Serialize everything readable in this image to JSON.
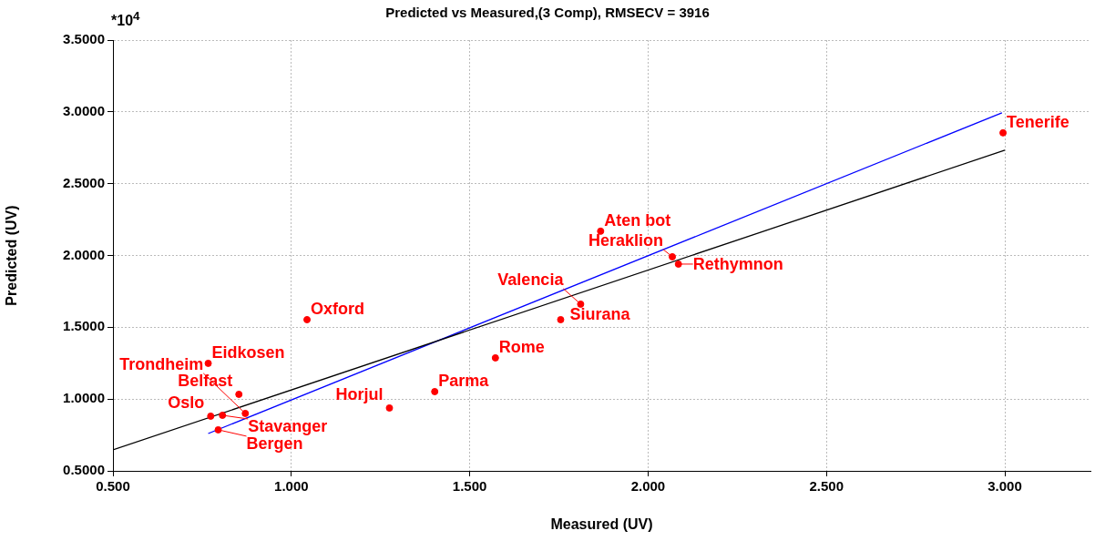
{
  "chart_data": {
    "type": "scatter",
    "title": "Predicted vs Measured,(3 Comp), RMSECV = 3916",
    "xlabel": "Measured (UV)",
    "ylabel": "Predicted (UV)",
    "xlim": [
      0.5,
      3.24
    ],
    "ylim": [
      0.5,
      3.5
    ],
    "xticks": [
      {
        "value": 0.5,
        "label": "0.500"
      },
      {
        "value": 1,
        "label": "1.000"
      },
      {
        "value": 1.5,
        "label": "1.500"
      },
      {
        "value": 2,
        "label": "2.000"
      },
      {
        "value": 2.5,
        "label": "2.500"
      },
      {
        "value": 3,
        "label": "3.000"
      }
    ],
    "yticks": [
      {
        "value": 0.5,
        "label": "0.5000"
      },
      {
        "value": 1,
        "label": "1.0000"
      },
      {
        "value": 1.5,
        "label": "1.5000"
      },
      {
        "value": 2,
        "label": "2.0000"
      },
      {
        "value": 2.5,
        "label": "2.5000"
      },
      {
        "value": 3,
        "label": "3.0000"
      },
      {
        "value": 3.5,
        "label": "3.5000"
      }
    ],
    "grid": true,
    "legend": false,
    "series": [
      {
        "type": "scatter",
        "marker": "circle",
        "color": "#ff0000",
        "x": [
          0.767,
          0.853,
          0.774,
          0.807,
          0.871,
          0.795,
          1.275,
          1.402,
          1.572,
          1.044,
          1.755,
          1.811,
          1.867,
          2.068,
          2.085,
          2.995
        ],
        "values": [
          1.249,
          1.033,
          0.881,
          0.887,
          0.9,
          0.786,
          0.938,
          1.052,
          1.287,
          1.553,
          1.553,
          1.661,
          2.169,
          1.991,
          1.94,
          2.854
        ]
      },
      {
        "type": "line",
        "color": "#000000",
        "x": [
          0.5,
          3.0
        ],
        "values": [
          0.646,
          2.733
        ]
      },
      {
        "type": "line",
        "color": "#0000ff",
        "x": [
          0.767,
          2.992
        ],
        "values": [
          0.76,
          2.994
        ]
      }
    ],
    "annotations": [
      "*10$^{4}$",
      {
        "text": "Eidkosen",
        "x": 0.767,
        "y": 1.249
      },
      {
        "text": "Belfast",
        "x": 0.853,
        "y": 1.033
      },
      {
        "text": "Oslo",
        "x": 0.774,
        "y": 0.881
      },
      {
        "text": "Stavanger",
        "x": 0.807,
        "y": 0.887
      },
      {
        "text": "Trondheim",
        "x": 0.871,
        "y": 0.9
      },
      {
        "text": "Bergen",
        "x": 0.795,
        "y": 0.786
      },
      {
        "text": "Horjul",
        "x": 1.275,
        "y": 0.938
      },
      {
        "text": "Parma",
        "x": 1.402,
        "y": 1.052
      },
      {
        "text": "Rome",
        "x": 1.572,
        "y": 1.287
      },
      {
        "text": "Oxford",
        "x": 1.044,
        "y": 1.553
      },
      {
        "text": "Siurana",
        "x": 1.755,
        "y": 1.553
      },
      {
        "text": "Valencia",
        "x": 1.811,
        "y": 1.661
      },
      {
        "text": "Aten bot",
        "x": 1.867,
        "y": 2.169
      },
      {
        "text": "Heraklion",
        "x": 2.068,
        "y": 1.991
      },
      {
        "text": "Rethymnon",
        "x": 2.085,
        "y": 1.94
      },
      {
        "text": "Tenerife",
        "x": 2.995,
        "y": 2.854
      }
    ]
  }
}
